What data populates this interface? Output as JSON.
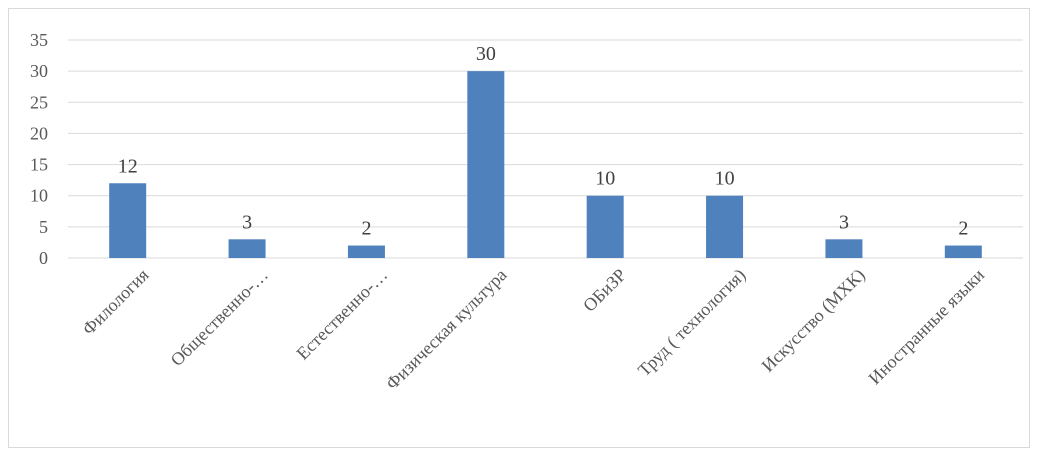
{
  "chart_data": {
    "type": "bar",
    "title": "",
    "xlabel": "",
    "ylabel": "",
    "ylim": [
      0,
      35
    ],
    "yticks": [
      0,
      5,
      10,
      15,
      20,
      25,
      30,
      35
    ],
    "grid": true,
    "legend": "none",
    "categories": [
      "Филология",
      "Общественно-…",
      "Естественно-…",
      "Физическая культура",
      "ОБиЗР",
      "Труд ( технология)",
      "Искусство (МХК)",
      "Иностранные языки"
    ],
    "series": [
      {
        "values": [
          12,
          3,
          2,
          30,
          10,
          10,
          3,
          2
        ]
      }
    ],
    "data_labels": true,
    "bar_color": "#4f81bd",
    "gridline_color": "#d9d9d9"
  }
}
